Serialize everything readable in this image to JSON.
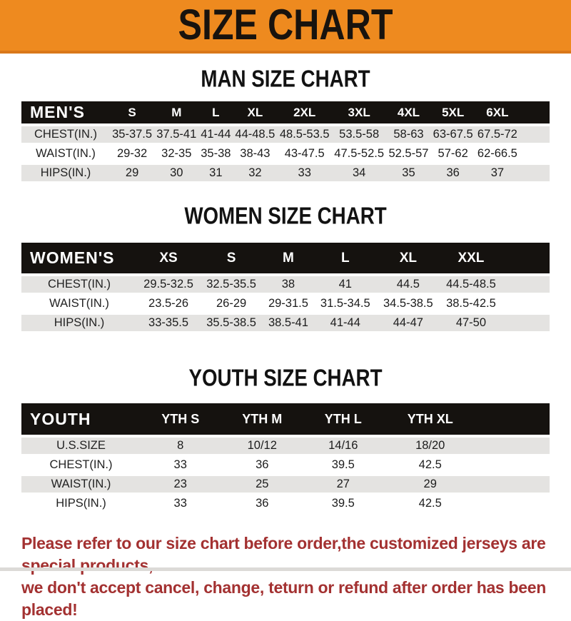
{
  "banner": {
    "title": "SIZE CHART"
  },
  "colors": {
    "banner_bg": "#EE8A1F",
    "banner_border": "#D9781A",
    "header_bar_bg": "#15120F",
    "stripe_row_bg": "#E4E3E1",
    "footer_text": "#A33131",
    "title_text": "#121212"
  },
  "sections": [
    {
      "id": "men",
      "title": "MAN SIZE CHART",
      "header_label": "MEN'S",
      "columns": [
        "S",
        "M",
        "L",
        "XL",
        "2XL",
        "3XL",
        "4XL",
        "5XL",
        "6XL"
      ],
      "rows": [
        {
          "label": "CHEST(IN.)",
          "values": [
            "35-37.5",
            "37.5-41",
            "41-44",
            "44-48.5",
            "48.5-53.5",
            "53.5-58",
            "58-63",
            "63-67.5",
            "67.5-72"
          ]
        },
        {
          "label": "WAIST(IN.)",
          "values": [
            "29-32",
            "32-35",
            "35-38",
            "38-43",
            "43-47.5",
            "47.5-52.5",
            "52.5-57",
            "57-62",
            "62-66.5"
          ]
        },
        {
          "label": "HIPS(IN.)",
          "values": [
            "29",
            "30",
            "31",
            "32",
            "33",
            "34",
            "35",
            "36",
            "37"
          ]
        }
      ]
    },
    {
      "id": "women",
      "title": "WOMEN SIZE CHART",
      "header_label": "WOMEN'S",
      "columns": [
        "XS",
        "S",
        "M",
        "L",
        "XL",
        "XXL"
      ],
      "rows": [
        {
          "label": "CHEST(IN.)",
          "values": [
            "29.5-32.5",
            "32.5-35.5",
            "38",
            "41",
            "44.5",
            "44.5-48.5"
          ]
        },
        {
          "label": "WAIST(IN.)",
          "values": [
            "23.5-26",
            "26-29",
            "29-31.5",
            "31.5-34.5",
            "34.5-38.5",
            "38.5-42.5"
          ]
        },
        {
          "label": "HIPS(IN.)",
          "values": [
            "33-35.5",
            "35.5-38.5",
            "38.5-41",
            "41-44",
            "44-47",
            "47-50"
          ]
        }
      ]
    },
    {
      "id": "youth",
      "title": "YOUTH SIZE CHART",
      "header_label": "YOUTH",
      "columns": [
        "YTH S",
        "YTH M",
        "YTH L",
        "YTH XL"
      ],
      "rows": [
        {
          "label": "U.S.SIZE",
          "values": [
            "8",
            "10/12",
            "14/16",
            "18/20"
          ]
        },
        {
          "label": "CHEST(IN.)",
          "values": [
            "33",
            "36",
            "39.5",
            "42.5"
          ]
        },
        {
          "label": "WAIST(IN.)",
          "values": [
            "23",
            "25",
            "27",
            "29"
          ]
        },
        {
          "label": "HIPS(IN.)",
          "values": [
            "33",
            "36",
            "39.5",
            "42.5"
          ]
        }
      ]
    }
  ],
  "footer": {
    "line1": "Please refer to our size chart before order,the customized jerseys are special products,",
    "line2": "we don't accept cancel, change, teturn or refund after order has been placed!"
  }
}
